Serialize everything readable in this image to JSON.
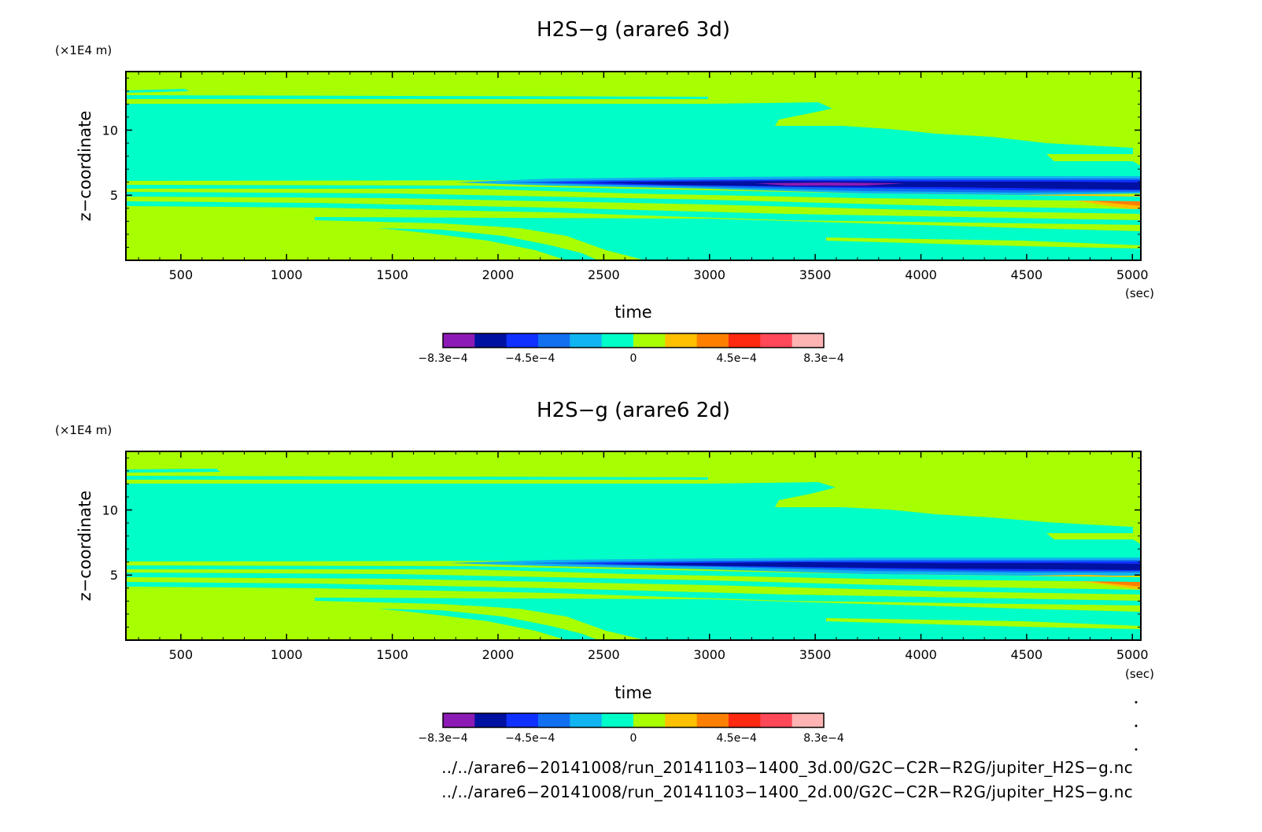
{
  "colors": {
    "levels": [
      "#8c1ab4",
      "#0010a0",
      "#1030ff",
      "#1070f0",
      "#10b4f0",
      "#00ffc8",
      "#a8ff00",
      "#ffc000",
      "#ff8000",
      "#ff2810",
      "#ff4858",
      "#ffb4b4"
    ],
    "background": "#a8ff00"
  },
  "chart_data": [
    {
      "type": "heatmap",
      "title": "H2S−g (arare6 3d)",
      "xlabel": "time",
      "xunit": "(sec)",
      "ylabel": "z−coordinate",
      "yunit": "(×1E4 m)",
      "xlim": [
        240,
        5040
      ],
      "ylim": [
        0,
        14.5
      ],
      "xticks": [
        500,
        1000,
        1500,
        2000,
        2500,
        3000,
        3500,
        4000,
        4500,
        5000
      ],
      "xtick_labels": [
        "500",
        "1000",
        "1500",
        "2000",
        "2500",
        "3000",
        "3500",
        "4000",
        "4500",
        "5000"
      ],
      "yticks": [
        5,
        10
      ],
      "ytick_labels": [
        "5",
        "10"
      ],
      "colorbar": {
        "range": [
          -0.00083,
          0.00083
        ],
        "levels": 12,
        "labels": [
          "−8.3e−4",
          "−4.5e−4",
          "0",
          "4.5e−4",
          "8.3e−4"
        ]
      },
      "regions": [
        {
          "label": "upper_negative_band",
          "sign": "negative_small",
          "t": [
            240,
            3600
          ],
          "z": [
            6.2,
            12.6
          ]
        },
        {
          "label": "deep_negative_core",
          "sign": "negative_strong",
          "t": [
            2700,
            5040
          ],
          "z": [
            5.5,
            6.4
          ]
        },
        {
          "label": "lower_negative_wedge",
          "sign": "negative_small",
          "t": [
            2500,
            5040
          ],
          "z": [
            0,
            2.5
          ]
        },
        {
          "label": "positive_tip",
          "sign": "positive",
          "t": [
            4600,
            5040
          ],
          "z": [
            4.6,
            5.4
          ]
        }
      ]
    },
    {
      "type": "heatmap",
      "title": "H2S−g (arare6 2d)",
      "xlabel": "time",
      "xunit": "(sec)",
      "ylabel": "z−coordinate",
      "yunit": "(×1E4 m)",
      "xlim": [
        240,
        5040
      ],
      "ylim": [
        0,
        14.5
      ],
      "xticks": [
        500,
        1000,
        1500,
        2000,
        2500,
        3000,
        3500,
        4000,
        4500,
        5000
      ],
      "xtick_labels": [
        "500",
        "1000",
        "1500",
        "2000",
        "2500",
        "3000",
        "3500",
        "4000",
        "4500",
        "5000"
      ],
      "yticks": [
        5,
        10
      ],
      "ytick_labels": [
        "5",
        "10"
      ],
      "colorbar": {
        "range": [
          -0.00083,
          0.00083
        ],
        "levels": 12,
        "labels": [
          "−8.3e−4",
          "−4.5e−4",
          "0",
          "4.5e−4",
          "8.3e−4"
        ]
      },
      "regions": [
        {
          "label": "upper_negative_band",
          "sign": "negative_small",
          "t": [
            240,
            3600
          ],
          "z": [
            6.2,
            12.6
          ]
        },
        {
          "label": "deep_negative_core",
          "sign": "negative_strong",
          "t": [
            2900,
            5040
          ],
          "z": [
            5.6,
            6.4
          ]
        },
        {
          "label": "lower_negative_wedge",
          "sign": "negative_small",
          "t": [
            2500,
            5040
          ],
          "z": [
            0,
            2.5
          ]
        },
        {
          "label": "positive_tip",
          "sign": "positive",
          "t": [
            4600,
            5040
          ],
          "z": [
            4.6,
            5.4
          ]
        }
      ]
    }
  ],
  "footer": {
    "file_3d": "../../arare6−20141008/run_20141103−1400_3d.00/G2C−C2R−R2G/jupiter_H2S−g.nc",
    "file_2d": "../../arare6−20141008/run_20141103−1400_2d.00/G2C−C2R−R2G/jupiter_H2S−g.nc"
  }
}
